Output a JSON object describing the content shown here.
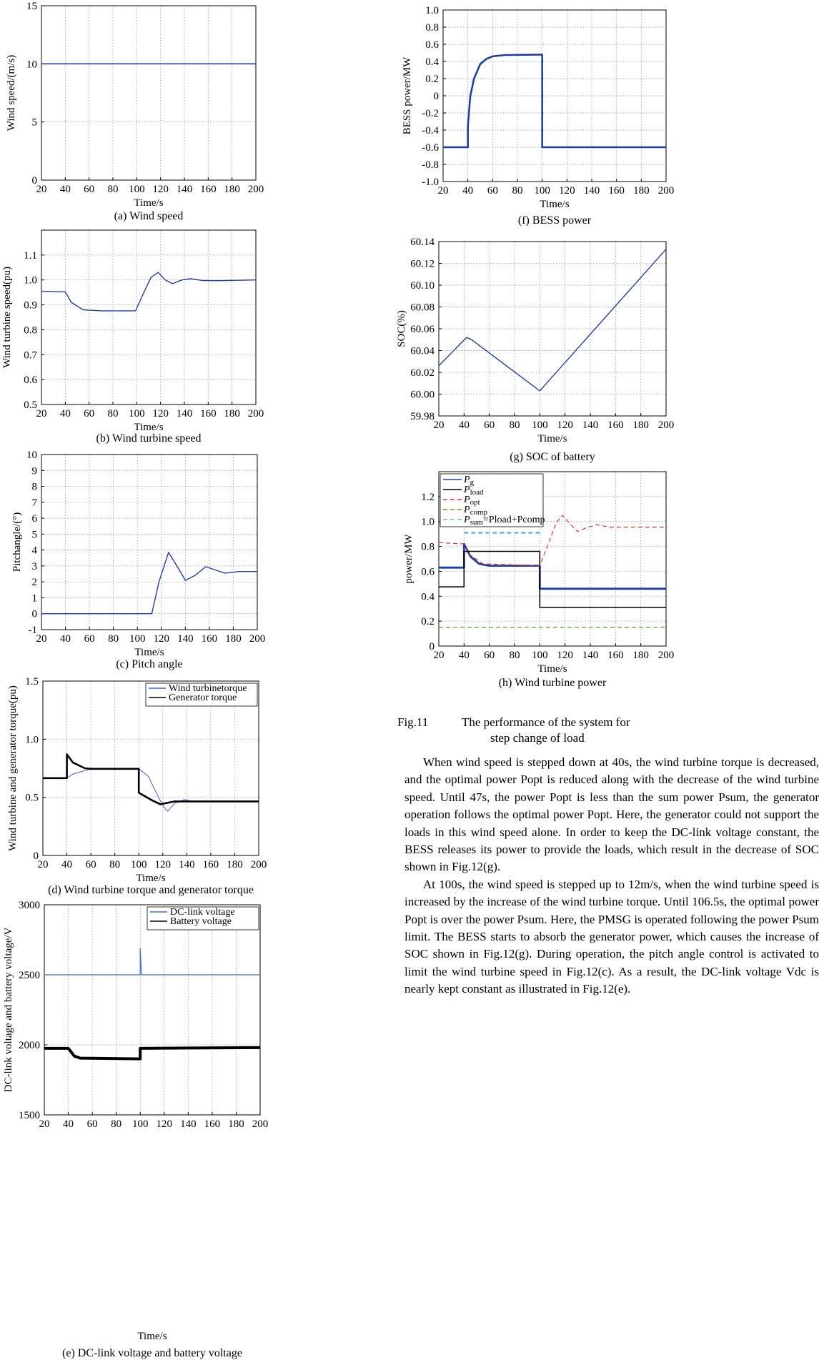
{
  "figure": {
    "number": "Fig.11",
    "caption_line1": "The performance of the system for",
    "caption_line2": "step change of load"
  },
  "panels": {
    "a": {
      "caption": "(a) Wind speed",
      "xlabel": "Time/s",
      "ylabel": "Wind speed/(m/s)"
    },
    "b": {
      "caption": "(b) Wind turbine speed",
      "xlabel": "Time/s",
      "ylabel": "Wind turbine speed(pu)"
    },
    "c": {
      "caption": "(c) Pitch angle",
      "xlabel": "Time/s",
      "ylabel": "Pitchangle/(°)"
    },
    "d": {
      "caption": "(d) Wind turbine torque and generator torque",
      "xlabel": "Time/s",
      "ylabel": "Wind turbine and generator torque(pu)",
      "legend": [
        "Wind turbinetorque",
        "Generator torque"
      ]
    },
    "e": {
      "caption": "(e) DC-link voltage and battery voltage",
      "xlabel": "Time/s",
      "ylabel": "DC-link voltage and battery voltage/V",
      "legend": [
        "DC-link voltage",
        "Battery voltage"
      ]
    },
    "f": {
      "caption": "(f) BESS power",
      "xlabel": "Time/s",
      "ylabel": "BESS power/MW"
    },
    "g": {
      "caption": "(g) SOC of battery",
      "xlabel": "Time/s",
      "ylabel": "SOC(%)"
    },
    "h": {
      "caption": "(h) Wind turbine power",
      "xlabel": "Time/s",
      "ylabel": "power/MW"
    }
  },
  "legend_h": [
    {
      "sym": "P",
      "sub": "g",
      "extra": "",
      "color": "#1f3fa8",
      "dash": ""
    },
    {
      "sym": "P",
      "sub": "load",
      "extra": "",
      "color": "#000000",
      "dash": ""
    },
    {
      "sym": "P",
      "sub": "opt",
      "extra": "",
      "color": "#e03030",
      "dash": "6,4"
    },
    {
      "sym": "P",
      "sub": "comp",
      "extra": "",
      "color": "#5aa02c",
      "dash": "6,4"
    },
    {
      "sym": "P",
      "sub": "sum",
      "extra": "=Pload+Pcomp",
      "color": "#6ab8e8",
      "dash": "6,4"
    }
  ],
  "paragraphs": [
    "When wind speed is stepped down at 40s, the wind turbine torque is decreased, and the optimal power Popt is reduced along with the decrease of the wind turbine speed. Until 47s, the power Popt is less than the sum power Psum, the generator operation follows the optimal power Popt. Here, the generator could not support the loads in this wind speed alone. In order to keep the DC-link voltage constant, the BESS releases its power to provide the loads, which result in the decrease of SOC shown in Fig.12(g).",
    "At 100s, the wind speed is stepped up to 12m/s, when the wind turbine speed is increased by the increase of the wind turbine torque. Until 106.5s, the optimal power Popt is over the power Psum. Here, the PMSG is operated following the power Psum limit. The BESS starts to absorb the generator power, which causes the increase of SOC shown in Fig.12(g). During operation, the pitch angle control is activated to limit the wind turbine speed in Fig.12(c). As a result, the DC-link voltage Vdc is nearly kept constant as illustrated in Fig.12(e)."
  ],
  "chart_data": [
    {
      "panel": "a",
      "type": "line",
      "xlim": [
        20,
        200
      ],
      "ylim": [
        0,
        15
      ],
      "xticks": [
        20,
        40,
        60,
        80,
        100,
        120,
        140,
        160,
        180,
        200
      ],
      "yticks": [
        0,
        5,
        10,
        15
      ],
      "series": [
        {
          "points": [
            [
              20,
              10
            ],
            [
              200,
              10
            ]
          ]
        }
      ]
    },
    {
      "panel": "b",
      "type": "line",
      "xlim": [
        20,
        200
      ],
      "ylim": [
        0.5,
        1.2
      ],
      "xticks": [
        20,
        40,
        60,
        80,
        100,
        120,
        140,
        160,
        180,
        200
      ],
      "yticks": [
        0.5,
        0.6,
        0.7,
        0.8,
        0.9,
        1.0,
        1.1
      ],
      "series": [
        {
          "points": [
            [
              20,
              0.955
            ],
            [
              40,
              0.952
            ],
            [
              45,
              0.91
            ],
            [
              55,
              0.88
            ],
            [
              70,
              0.876
            ],
            [
              99,
              0.876
            ],
            [
              105,
              0.94
            ],
            [
              112,
              1.01
            ],
            [
              118,
              1.03
            ],
            [
              124,
              1.0
            ],
            [
              130,
              0.985
            ],
            [
              138,
              1.0
            ],
            [
              145,
              1.005
            ],
            [
              155,
              0.998
            ],
            [
              165,
              0.997
            ],
            [
              200,
              1.0
            ]
          ]
        }
      ]
    },
    {
      "panel": "c",
      "type": "line",
      "xlim": [
        20,
        200
      ],
      "ylim": [
        -1,
        10
      ],
      "xticks": [
        20,
        40,
        60,
        80,
        100,
        120,
        140,
        160,
        180,
        200
      ],
      "yticks": [
        -1,
        0,
        1,
        2,
        3,
        4,
        5,
        6,
        7,
        8,
        9,
        10
      ],
      "series": [
        {
          "points": [
            [
              20,
              0
            ],
            [
              112,
              0
            ],
            [
              118,
              2
            ],
            [
              126,
              3.85
            ],
            [
              133,
              3.0
            ],
            [
              140,
              2.1
            ],
            [
              148,
              2.4
            ],
            [
              157,
              2.95
            ],
            [
              165,
              2.75
            ],
            [
              173,
              2.55
            ],
            [
              185,
              2.65
            ],
            [
              200,
              2.65
            ]
          ]
        }
      ]
    },
    {
      "panel": "d",
      "type": "line",
      "xlim": [
        20,
        200
      ],
      "ylim": [
        0,
        1.5
      ],
      "xticks": [
        20,
        40,
        60,
        80,
        100,
        120,
        140,
        160,
        180,
        200
      ],
      "yticks": [
        0,
        0.5,
        1.0,
        1.5
      ],
      "series": [
        {
          "name": "Wind turbinetorque",
          "points": [
            [
              20,
              0.66
            ],
            [
              40,
              0.665
            ],
            [
              45,
              0.7
            ],
            [
              55,
              0.73
            ],
            [
              60,
              0.745
            ],
            [
              100,
              0.745
            ],
            [
              108,
              0.68
            ],
            [
              115,
              0.53
            ],
            [
              120,
              0.43
            ],
            [
              124,
              0.38
            ],
            [
              130,
              0.45
            ],
            [
              138,
              0.48
            ],
            [
              145,
              0.465
            ],
            [
              200,
              0.465
            ]
          ]
        },
        {
          "name": "Generator torque",
          "points": [
            [
              20,
              0.665
            ],
            [
              40,
              0.665
            ],
            [
              40,
              0.87
            ],
            [
              45,
              0.8
            ],
            [
              55,
              0.75
            ],
            [
              60,
              0.745
            ],
            [
              100,
              0.745
            ],
            [
              100,
              0.54
            ],
            [
              110,
              0.48
            ],
            [
              118,
              0.44
            ],
            [
              125,
              0.455
            ],
            [
              130,
              0.465
            ],
            [
              200,
              0.465
            ]
          ]
        }
      ]
    },
    {
      "panel": "e",
      "type": "line",
      "xlim": [
        20,
        200
      ],
      "ylim": [
        1500,
        3000
      ],
      "xticks": [
        20,
        40,
        60,
        80,
        100,
        120,
        140,
        160,
        180,
        200
      ],
      "yticks": [
        1500,
        2000,
        2500,
        3000
      ],
      "series": [
        {
          "name": "DC-link voltage",
          "points": [
            [
              20,
              2500
            ],
            [
              100,
              2500
            ],
            [
              100,
              2690
            ],
            [
              101,
              2500
            ],
            [
              200,
              2500
            ]
          ]
        },
        {
          "name": "Battery voltage",
          "points": [
            [
              20,
              1975
            ],
            [
              40,
              1975
            ],
            [
              45,
              1920
            ],
            [
              50,
              1905
            ],
            [
              100,
              1900
            ],
            [
              100,
              1975
            ],
            [
              200,
              1980
            ]
          ]
        }
      ]
    },
    {
      "panel": "f",
      "type": "line",
      "xlim": [
        20,
        200
      ],
      "ylim": [
        -1,
        1
      ],
      "xticks": [
        20,
        40,
        60,
        80,
        100,
        120,
        140,
        160,
        180,
        200
      ],
      "yticks": [
        -1.0,
        -0.8,
        -0.6,
        -0.4,
        -0.2,
        0,
        0.2,
        0.4,
        0.6,
        0.8,
        1.0
      ],
      "series": [
        {
          "points": [
            [
              20,
              -0.6
            ],
            [
              40,
              -0.6
            ],
            [
              40,
              -0.35
            ],
            [
              42,
              0.0
            ],
            [
              45,
              0.2
            ],
            [
              50,
              0.37
            ],
            [
              55,
              0.43
            ],
            [
              60,
              0.46
            ],
            [
              70,
              0.475
            ],
            [
              99,
              0.48
            ],
            [
              100,
              0.48
            ],
            [
              100,
              -0.6
            ],
            [
              200,
              -0.6
            ]
          ]
        }
      ]
    },
    {
      "panel": "g",
      "type": "line",
      "xlim": [
        20,
        200
      ],
      "ylim": [
        59.98,
        60.14
      ],
      "xticks": [
        20,
        40,
        60,
        80,
        100,
        120,
        140,
        160,
        180,
        200
      ],
      "yticks": [
        59.98,
        60.0,
        60.02,
        60.04,
        60.06,
        60.08,
        60.1,
        60.12,
        60.14
      ],
      "series": [
        {
          "points": [
            [
              20,
              60.026
            ],
            [
              42,
              60.052
            ],
            [
              46,
              60.05
            ],
            [
              100,
              60.003
            ],
            [
              200,
              60.133
            ]
          ]
        }
      ]
    },
    {
      "panel": "h",
      "type": "line",
      "xlim": [
        20,
        200
      ],
      "ylim": [
        0,
        1.4
      ],
      "xticks": [
        20,
        40,
        60,
        80,
        100,
        120,
        140,
        160,
        180,
        200
      ],
      "yticks": [
        0,
        0.2,
        0.4,
        0.6,
        0.8,
        1.0,
        1.2
      ],
      "series": [
        {
          "name": "Pg",
          "points": [
            [
              20,
              0.63
            ],
            [
              40,
              0.63
            ],
            [
              40,
              0.82
            ],
            [
              45,
              0.72
            ],
            [
              52,
              0.66
            ],
            [
              60,
              0.645
            ],
            [
              100,
              0.645
            ],
            [
              100,
              0.46
            ],
            [
              200,
              0.46
            ]
          ]
        },
        {
          "name": "Pload",
          "points": [
            [
              20,
              0.475
            ],
            [
              40,
              0.475
            ],
            [
              40,
              0.76
            ],
            [
              100,
              0.76
            ],
            [
              100,
              0.31
            ],
            [
              200,
              0.31
            ]
          ]
        },
        {
          "name": "Popt",
          "points": [
            [
              20,
              0.83
            ],
            [
              40,
              0.82
            ],
            [
              45,
              0.73
            ],
            [
              55,
              0.66
            ],
            [
              100,
              0.645
            ],
            [
              106,
              0.8
            ],
            [
              113,
              0.99
            ],
            [
              118,
              1.05
            ],
            [
              124,
              0.98
            ],
            [
              130,
              0.92
            ],
            [
              137,
              0.95
            ],
            [
              145,
              0.975
            ],
            [
              155,
              0.955
            ],
            [
              170,
              0.955
            ],
            [
              200,
              0.955
            ]
          ]
        },
        {
          "name": "Pcomp",
          "points": [
            [
              20,
              0.15
            ],
            [
              200,
              0.15
            ]
          ]
        },
        {
          "name": "Psum=Pload+Pcomp",
          "points": [
            [
              40,
              0.91
            ],
            [
              100,
              0.91
            ]
          ]
        }
      ]
    }
  ]
}
